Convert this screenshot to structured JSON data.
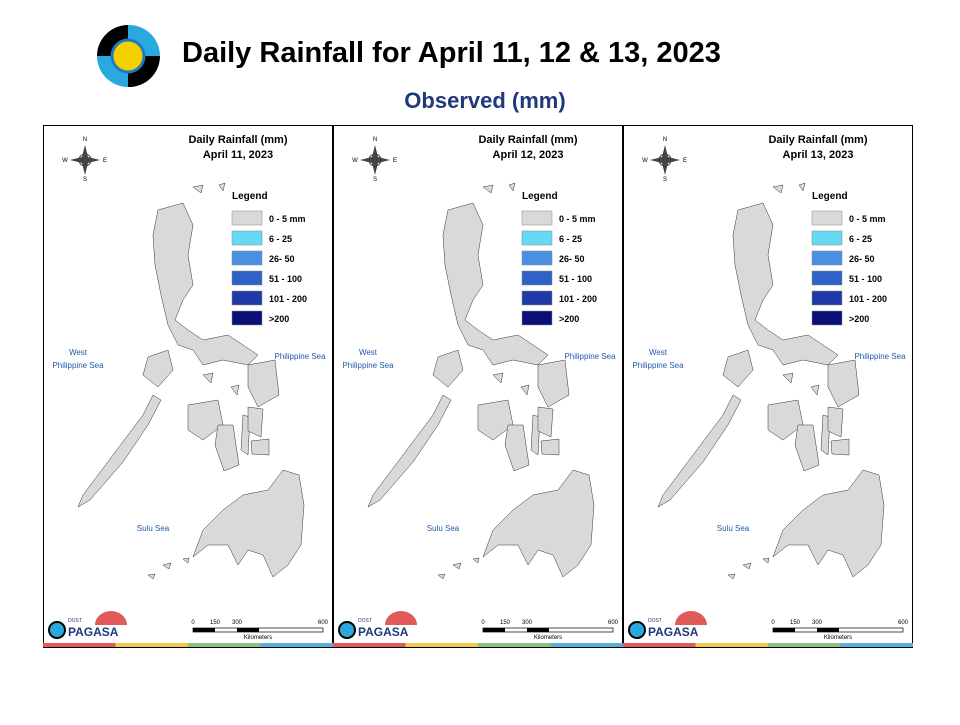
{
  "header": {
    "title": "Daily Rainfall for April 11, 12 & 13, 2023",
    "subtitle": "Observed (mm)"
  },
  "panels": [
    {
      "title": "Daily Rainfall (mm)",
      "date": "April 11, 2023"
    },
    {
      "title": "Daily Rainfall (mm)",
      "date": "April 12, 2023"
    },
    {
      "title": "Daily Rainfall (mm)",
      "date": "April 13, 2023"
    }
  ],
  "legend": {
    "title": "Legend",
    "items": [
      {
        "label": "0 - 5 mm",
        "color": "#d9d9d9"
      },
      {
        "label": "6 - 25",
        "color": "#66d9f5"
      },
      {
        "label": "26- 50",
        "color": "#4a90e2"
      },
      {
        "label": "51 - 100",
        "color": "#2f62c8"
      },
      {
        "label": "101 - 200",
        "color": "#1f3aa8"
      },
      {
        "label": ">200",
        "color": "#0b0f78"
      }
    ]
  },
  "compass": {
    "n": "N",
    "s": "S",
    "e": "E",
    "w": "W"
  },
  "seas": {
    "west_1": "West",
    "west_2": "Philippine Sea",
    "east": "Philippine Sea",
    "sulu": "Sulu Sea"
  },
  "scale": {
    "ticks": [
      "0",
      "150",
      "300",
      "600"
    ],
    "unit": "Kilometers"
  },
  "logo": {
    "dost": "DOST",
    "name": "PAGASA"
  }
}
